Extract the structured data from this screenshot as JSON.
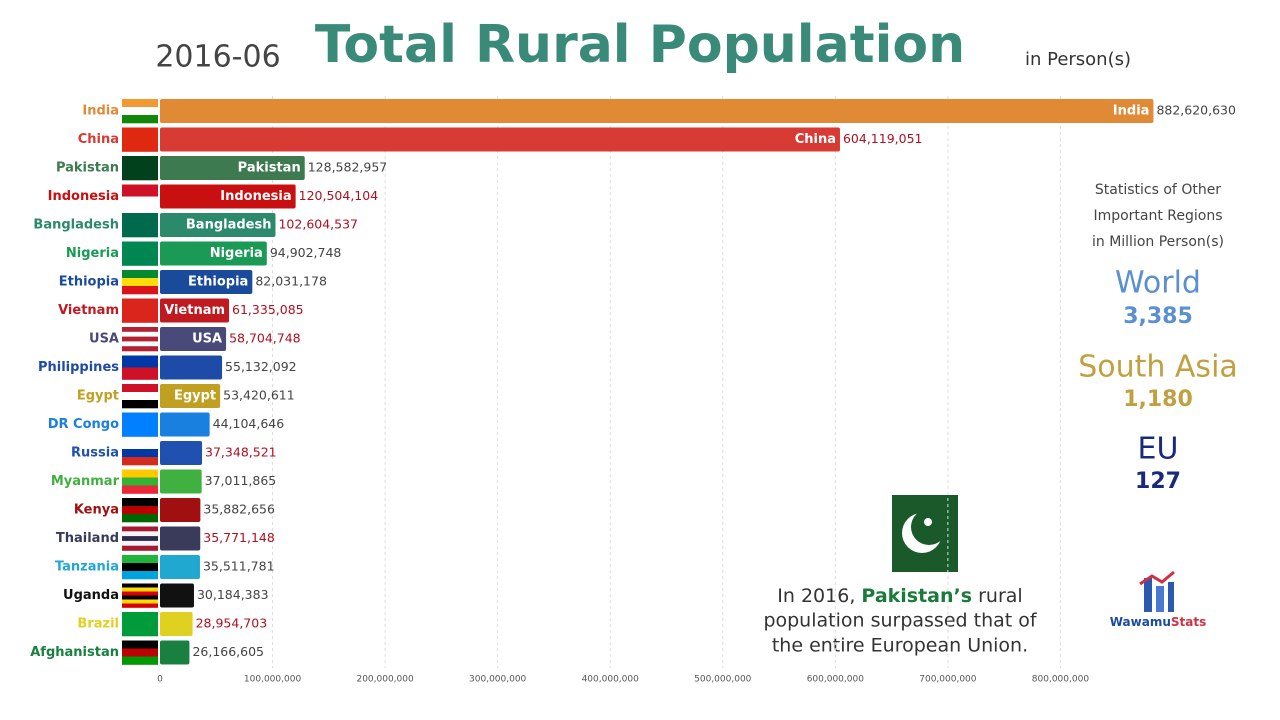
{
  "chart_data": {
    "type": "bar",
    "orientation": "horizontal",
    "date": "2016-06",
    "title": "Total Rural Population",
    "unit_label": "in Person(s)",
    "categories": [
      "India",
      "China",
      "Pakistan",
      "Indonesia",
      "Bangladesh",
      "Nigeria",
      "Ethiopia",
      "Vietnam",
      "USA",
      "Philippines",
      "Egypt",
      "DR Congo",
      "Russia",
      "Myanmar",
      "Kenya",
      "Thailand",
      "Tanzania",
      "Uganda",
      "Brazil",
      "Afghanistan"
    ],
    "values": [
      882620630,
      604119051,
      128582957,
      120504104,
      102604537,
      94902748,
      82031178,
      61335085,
      58704748,
      55132092,
      53420611,
      44104646,
      37348521,
      37011865,
      35882656,
      35771148,
      35511781,
      30184383,
      28954703,
      26166605
    ],
    "value_labels": [
      "882,620,630",
      "604,119,051",
      "128,582,957",
      "120,504,104",
      "102,604,537",
      "94,902,748",
      "82,031,178",
      "61,335,085",
      "58,704,748",
      "55,132,092",
      "53,420,611",
      "44,104,646",
      "37,348,521",
      "37,011,865",
      "35,882,656",
      "35,771,148",
      "35,511,781",
      "30,184,383",
      "28,954,703",
      "26,166,605"
    ],
    "colors": [
      "#e08a35",
      "#d83a34",
      "#3d7a50",
      "#c81010",
      "#2a8a6a",
      "#1a9a55",
      "#1a4a9a",
      "#c01a20",
      "#4a4a7a",
      "#1e4aa8",
      "#c0a020",
      "#1a80e0",
      "#2050b0",
      "#40b040",
      "#a01010",
      "#3a3a5a",
      "#20a8d0",
      "#111111",
      "#e0d020",
      "#1a8040"
    ],
    "value_label_colors": [
      "#444444",
      "#b01020",
      "#444444",
      "#b01020",
      "#b01020",
      "#444444",
      "#444444",
      "#b01020",
      "#b01020",
      "#444444",
      "#444444",
      "#444444",
      "#b01020",
      "#444444",
      "#444444",
      "#b01020",
      "#444444",
      "#444444",
      "#b01020",
      "#444444"
    ],
    "inner_labels": [
      true,
      true,
      true,
      true,
      true,
      true,
      true,
      true,
      true,
      false,
      true,
      false,
      false,
      false,
      false,
      false,
      false,
      false,
      false,
      false
    ],
    "xlim": [
      0,
      900000000
    ],
    "xticks": [
      0,
      {
        "value": 100000000,
        "label": "100,000,000"
      },
      {
        "value": 200000000,
        "label": "200,000,000"
      },
      {
        "value": 300000000,
        "label": "300,000,000"
      },
      {
        "value": 400000000,
        "label": "400,000,000"
      },
      {
        "value": 500000000,
        "label": "500,000,000"
      },
      {
        "value": 600000000,
        "label": "600,000,000"
      },
      {
        "value": 700000000,
        "label": "700,000,000"
      },
      {
        "value": 800000000,
        "label": "800,000,000"
      }
    ],
    "grid": true,
    "stats_heading": [
      "Statistics of Other",
      "Important Regions",
      "in Million Person(s)"
    ],
    "stats": [
      {
        "name": "World",
        "value": 3385,
        "label": "3,385",
        "color": "#5b8fd0"
      },
      {
        "name": "South Asia",
        "value": 1180,
        "label": "1,180",
        "color": "#c0a040"
      },
      {
        "name": "EU",
        "value": 127,
        "color": "#1a2a7a"
      }
    ],
    "annotation": [
      [
        "In 2016, ",
        "Pakistan’s",
        " rural"
      ],
      [
        "population surpassed that of"
      ],
      [
        "the entire European Union."
      ]
    ],
    "logo": [
      "Wawamu",
      "Stats"
    ]
  }
}
